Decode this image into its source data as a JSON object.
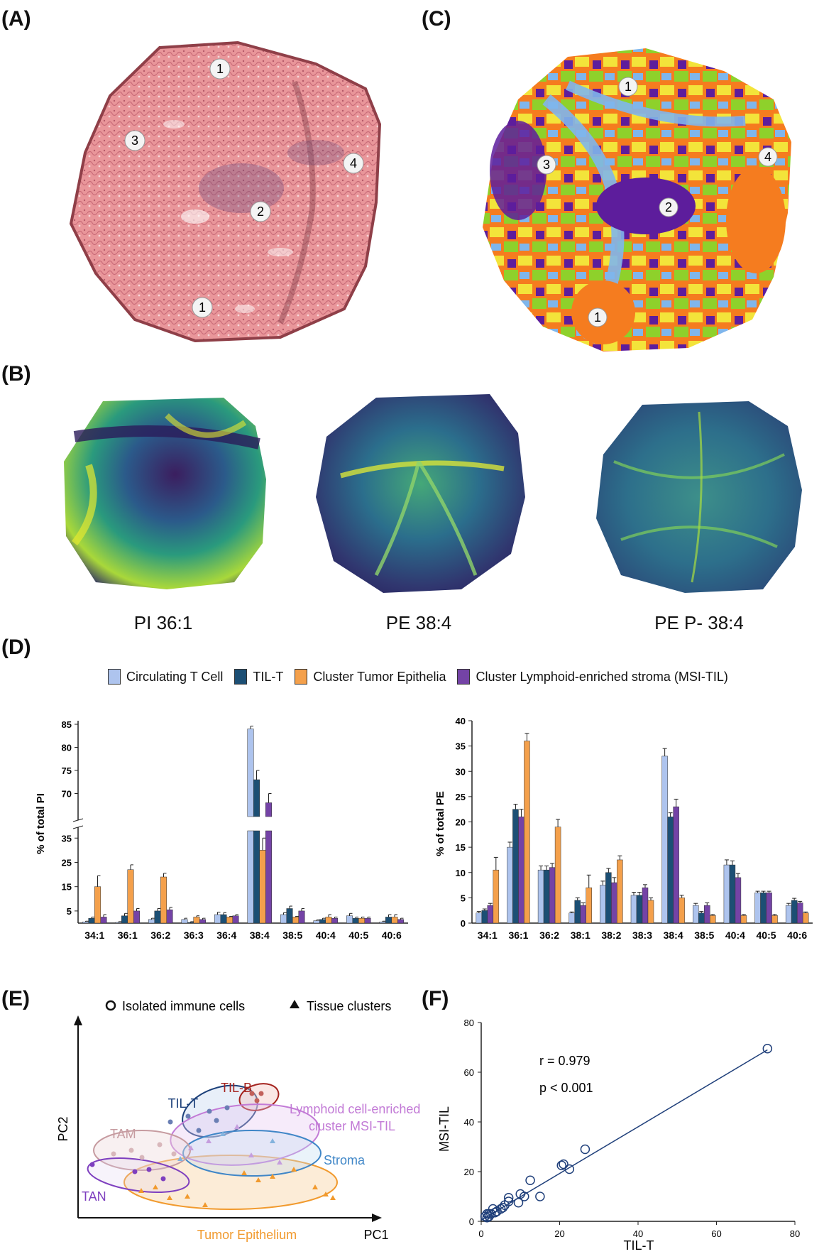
{
  "panels": {
    "A": "(A)",
    "B": "(B)",
    "C": "(C)",
    "D": "(D)",
    "E": "(E)",
    "F": "(F)"
  },
  "tissue_markers": {
    "A": [
      {
        "label": "1"
      },
      {
        "label": "3"
      },
      {
        "label": "4"
      },
      {
        "label": "2"
      },
      {
        "label": "1"
      }
    ],
    "C": [
      {
        "label": "1"
      },
      {
        "label": "3"
      },
      {
        "label": "4"
      },
      {
        "label": "2"
      },
      {
        "label": "1"
      }
    ]
  },
  "heatmap_titles": [
    "PI 36:1",
    "PE 38:4",
    "PE P- 38:4"
  ],
  "colors": {
    "circulating": "#aec4ee",
    "til_t": "#1c4f74",
    "tumor": "#f4a04b",
    "lymphoid": "#7443a6"
  },
  "legend_D": [
    {
      "label": "Circulating T Cell",
      "color": "#aec4ee"
    },
    {
      "label": "TIL-T",
      "color": "#1c4f74"
    },
    {
      "label": "Cluster Tumor Epithelia",
      "color": "#f4a04b"
    },
    {
      "label": "Cluster Lymphoid-enriched stroma (MSI-TIL)",
      "color": "#7443a6"
    }
  ],
  "chart_data": [
    {
      "type": "bar",
      "ylabel": "% of total PI",
      "categories": [
        "34:1",
        "36:1",
        "36:2",
        "36:3",
        "36:4",
        "38:4",
        "38:5",
        "40:4",
        "40:5",
        "40:6"
      ],
      "y_ticks": [
        "5",
        "15",
        "25",
        "35",
        "70",
        "75",
        "80",
        "85"
      ],
      "broken_axis": {
        "lower": [
          0,
          38
        ],
        "upper": [
          65,
          85
        ]
      },
      "series": [
        {
          "name": "Circulating T Cell",
          "values": [
            0.5,
            0.3,
            1.5,
            1.5,
            3.5,
            84,
            3.5,
            1,
            3,
            0.5
          ]
        },
        {
          "name": "TIL-T",
          "values": [
            2,
            3,
            5,
            0.3,
            3.5,
            73,
            6,
            1.5,
            2,
            2.5
          ]
        },
        {
          "name": "Cluster Tumor Epithelia",
          "values": [
            15,
            22,
            19,
            2.5,
            2.5,
            30,
            2.5,
            2.5,
            2,
            2.5
          ]
        },
        {
          "name": "Cluster Lymphoid-enriched stroma (MSI-TIL)",
          "values": [
            2.5,
            5,
            5.5,
            1.5,
            3,
            68,
            5,
            2,
            2,
            1.5
          ]
        }
      ],
      "errors": [
        [
          0.3,
          0.3,
          0.5,
          0.5,
          1,
          0.6,
          0.8,
          0.3,
          1,
          0.3
        ],
        [
          0.5,
          1,
          1,
          0.3,
          0.8,
          2,
          1,
          0.5,
          0.5,
          1
        ],
        [
          4.5,
          2,
          1.5,
          0.5,
          0.3,
          5,
          0.3,
          1,
          0.5,
          1
        ],
        [
          1,
          1,
          1,
          0.5,
          0.5,
          2,
          1,
          0.5,
          0.5,
          0.5
        ]
      ]
    },
    {
      "type": "bar",
      "ylabel": "% of total PE",
      "categories": [
        "34:1",
        "36:1",
        "36:2",
        "38:1",
        "38:2",
        "38:3",
        "38:4",
        "38:5",
        "40:4",
        "40:5",
        "40:6"
      ],
      "ylim": [
        0,
        40
      ],
      "y_ticks": [
        "0",
        "5",
        "10",
        "15",
        "20",
        "25",
        "30",
        "35",
        "40"
      ],
      "series": [
        {
          "name": "Circulating T Cell",
          "values": [
            2,
            15,
            10.5,
            2,
            7.5,
            5.5,
            33,
            3.5,
            11.5,
            6,
            3.5
          ]
        },
        {
          "name": "TIL-T",
          "values": [
            2.5,
            22.5,
            10.5,
            4.5,
            10,
            5.5,
            21,
            2,
            11.5,
            6,
            4.5
          ]
        },
        {
          "name": "Cluster Lymphoid-enriched stroma (MSI-TIL)",
          "values": [
            3.5,
            21,
            11,
            3.5,
            8,
            7,
            23,
            3.5,
            9,
            6,
            4
          ]
        },
        {
          "name": "Cluster Tumor Epithelia",
          "values": [
            10.5,
            36,
            19,
            7,
            12.5,
            4.5,
            5,
            1.5,
            1.5,
            1.5,
            2
          ]
        }
      ],
      "errors": [
        [
          0.3,
          1,
          0.8,
          0.2,
          0.8,
          0.6,
          1.5,
          0.4,
          1,
          0.3,
          0.4
        ],
        [
          0.3,
          1,
          0.8,
          0.5,
          0.8,
          0.6,
          0.8,
          0.3,
          0.8,
          0.3,
          0.4
        ],
        [
          0.4,
          1.5,
          0.8,
          0.5,
          1,
          0.6,
          1.5,
          0.5,
          0.8,
          0.3,
          0.3
        ],
        [
          2.5,
          1.5,
          1.5,
          2.5,
          0.8,
          0.5,
          0.5,
          0.2,
          0.2,
          0.2,
          0.2
        ]
      ]
    },
    {
      "type": "scatter",
      "title_lines": [
        "r = 0.979",
        "p < 0.001"
      ],
      "xlabel": "TIL-T",
      "ylabel": "MSI-TIL",
      "xlim": [
        0,
        80
      ],
      "ylim": [
        0,
        80
      ],
      "x_ticks": [
        "0",
        "20",
        "40",
        "60",
        "80"
      ],
      "y_ticks": [
        "0",
        "20",
        "40",
        "60",
        "80"
      ],
      "points": [
        [
          73,
          69.5
        ],
        [
          26.5,
          29
        ],
        [
          22.5,
          21
        ],
        [
          21,
          23
        ],
        [
          20.5,
          22.5
        ],
        [
          15,
          10
        ],
        [
          12.5,
          16.5
        ],
        [
          11,
          10
        ],
        [
          10,
          11
        ],
        [
          9.5,
          7.5
        ],
        [
          7,
          8
        ],
        [
          7,
          9.5
        ],
        [
          6,
          6.5
        ],
        [
          5.5,
          5.5
        ],
        [
          5,
          5
        ],
        [
          4,
          4
        ],
        [
          3.5,
          3.5
        ],
        [
          3,
          5
        ],
        [
          2.5,
          3
        ],
        [
          2,
          2
        ],
        [
          2,
          3
        ],
        [
          1.5,
          1.5
        ],
        [
          1,
          2
        ],
        [
          1.5,
          3
        ]
      ],
      "fit": [
        [
          0,
          0.5
        ],
        [
          73,
          69
        ]
      ]
    }
  ],
  "pca": {
    "legend_circle": "Isolated immune cells",
    "legend_triangle": "Tissue clusters",
    "xlabel": "PC1",
    "ylabel": "PC2",
    "groups": [
      {
        "label": "TIL-T",
        "color": "#1b3f79"
      },
      {
        "label": "TIL-B",
        "color": "#a4231e"
      },
      {
        "label": "Lymphoid cell-enriched",
        "label2": "cluster MSI-TIL",
        "color": "#c27ad6"
      },
      {
        "label": "TAM",
        "color": "#c69ba0"
      },
      {
        "label": "Stroma",
        "color": "#3f86c7"
      },
      {
        "label": "TAN",
        "color": "#7e3fbf"
      },
      {
        "label": "Tumor Epithelium",
        "color": "#f19a2e"
      }
    ]
  }
}
